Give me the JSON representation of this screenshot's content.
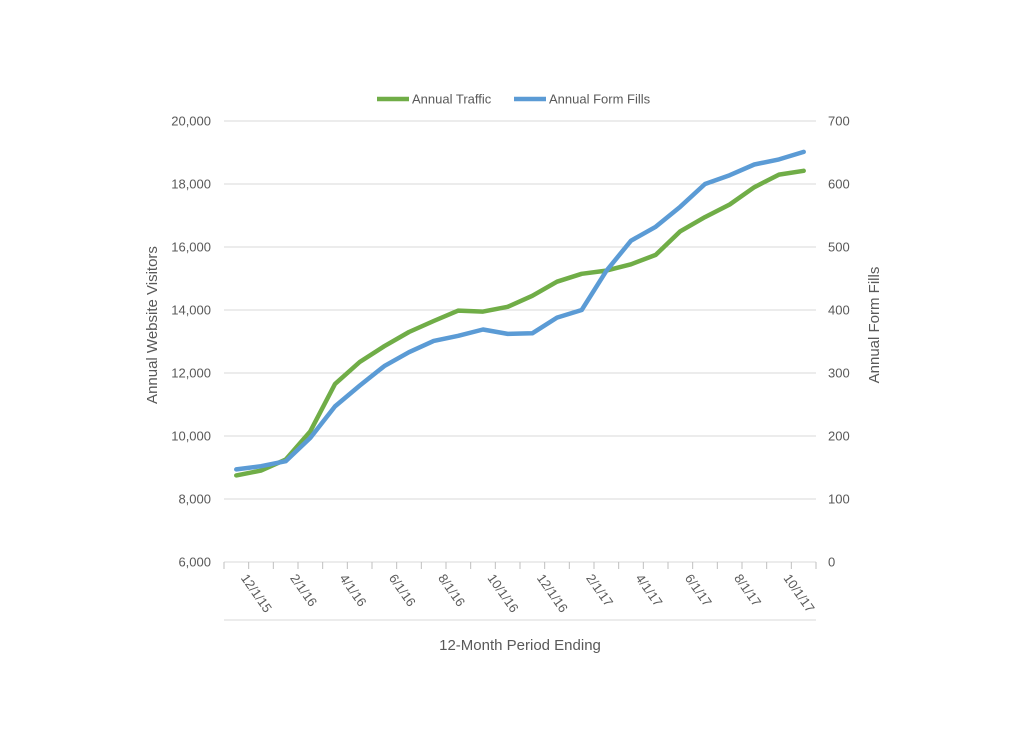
{
  "chart_data": {
    "type": "line",
    "title": "",
    "xlabel": "12-Month Period Ending",
    "ylabel_left": "Annual Website Visitors",
    "ylabel_right": "Annual Form Fills",
    "ylim_left": [
      6000,
      20000
    ],
    "ylim_right": [
      0,
      700
    ],
    "yticks_left": [
      "6,000",
      "8,000",
      "10,000",
      "12,000",
      "14,000",
      "16,000",
      "18,000",
      "20,000"
    ],
    "yticks_left_values": [
      6000,
      8000,
      10000,
      12000,
      14000,
      16000,
      18000,
      20000
    ],
    "yticks_right": [
      "0",
      "100",
      "200",
      "300",
      "400",
      "500",
      "600",
      "700"
    ],
    "yticks_right_values": [
      0,
      100,
      200,
      300,
      400,
      500,
      600,
      700
    ],
    "grid": true,
    "legend_position": "top",
    "x_points": 24,
    "xtick_labels": [
      {
        "index": 0,
        "label": "12/1/15"
      },
      {
        "index": 2,
        "label": "2/1/16"
      },
      {
        "index": 4,
        "label": "4/1/16"
      },
      {
        "index": 6,
        "label": "6/1/16"
      },
      {
        "index": 8,
        "label": "8/1/16"
      },
      {
        "index": 10,
        "label": "10/1/16"
      },
      {
        "index": 12,
        "label": "12/1/16"
      },
      {
        "index": 14,
        "label": "2/1/17"
      },
      {
        "index": 16,
        "label": "4/1/17"
      },
      {
        "index": 18,
        "label": "6/1/17"
      },
      {
        "index": 20,
        "label": "8/1/17"
      },
      {
        "index": 22,
        "label": "10/1/17"
      }
    ],
    "series": [
      {
        "name": "Annual Traffic",
        "axis": "left",
        "color": "#70AD47",
        "values": [
          8750,
          8900,
          9250,
          10150,
          11650,
          12350,
          12850,
          13300,
          13650,
          13980,
          13950,
          14100,
          14450,
          14900,
          15150,
          15250,
          15450,
          15750,
          16500,
          16950,
          17350,
          17900,
          18300,
          18420
        ]
      },
      {
        "name": "Annual Form Fills",
        "axis": "right",
        "color": "#5B9BD5",
        "values": [
          147,
          152,
          160,
          197,
          247,
          280,
          311,
          333,
          351,
          359,
          369,
          362,
          363,
          388,
          400,
          462,
          510,
          532,
          564,
          600,
          614,
          631,
          639,
          651
        ]
      }
    ]
  }
}
